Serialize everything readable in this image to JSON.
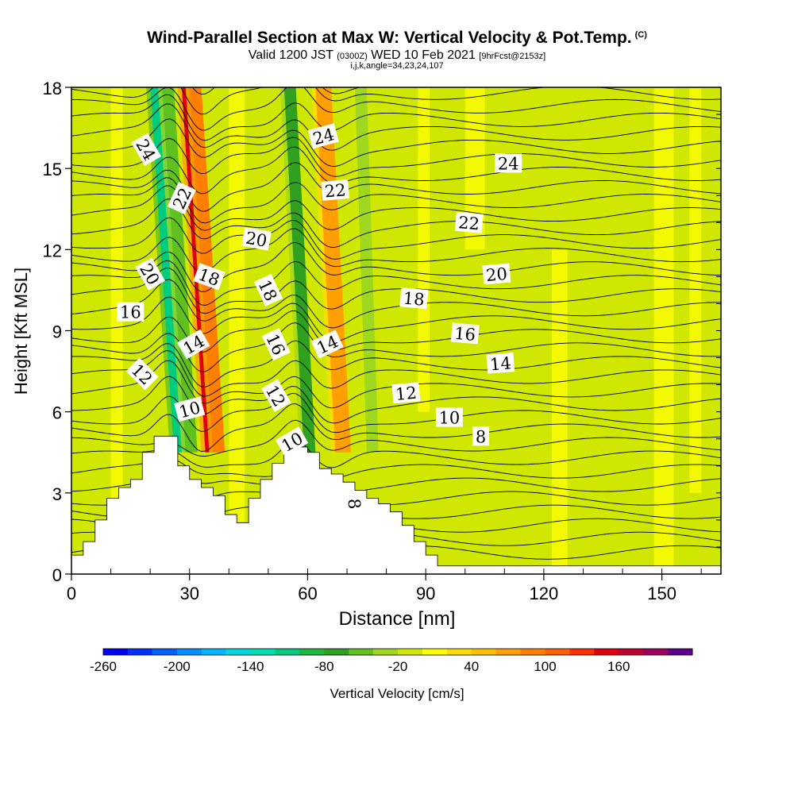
{
  "title": {
    "main": "Wind-Parallel Section at Max W: Vertical Velocity & Pot.Temp.",
    "badge": "(C)",
    "valid_prefix": "Valid 1200 JST",
    "valid_utc": "(0300Z)",
    "valid_suffix": "WED 10 Feb 2021",
    "forecast": "[9hrFcst@2153z]",
    "params": "i,j,k,angle=34,23,24,107"
  },
  "chart_data": {
    "type": "contour-cross-section",
    "xlabel": "Distance [nm]",
    "ylabel": "Height [Kft MSL]",
    "xlim": [
      0,
      165
    ],
    "ylim": [
      0,
      18
    ],
    "x_ticks": [
      0,
      30,
      60,
      90,
      120,
      150
    ],
    "y_ticks": [
      0,
      3,
      6,
      9,
      12,
      15,
      18
    ],
    "terrain": {
      "x": [
        0,
        3,
        6,
        9,
        12,
        15,
        18,
        21,
        24,
        27,
        30,
        33,
        36,
        39,
        42,
        45,
        48,
        51,
        54,
        57,
        60,
        63,
        66,
        69,
        72,
        75,
        78,
        81,
        84,
        87,
        90,
        93,
        96,
        165
      ],
      "height": [
        0.7,
        1.2,
        2.0,
        2.8,
        3.2,
        3.5,
        4.5,
        5.1,
        5.1,
        4.0,
        3.5,
        3.2,
        2.9,
        2.2,
        1.9,
        2.8,
        3.5,
        4.1,
        4.7,
        4.7,
        4.5,
        3.9,
        3.7,
        3.4,
        3.1,
        2.8,
        2.6,
        2.3,
        1.8,
        1.2,
        0.7,
        0.3,
        0.3,
        0.3
      ]
    },
    "vertical_velocity_bands": [
      {
        "x": 21,
        "w": 3,
        "value": -120
      },
      {
        "x": 24,
        "w": 3,
        "value": -60
      },
      {
        "x": 29,
        "w": 2.5,
        "value": 140
      },
      {
        "x": 31,
        "w": 3,
        "value": 90
      },
      {
        "x": 55,
        "w": 3,
        "value": -80
      },
      {
        "x": 63,
        "w": 4,
        "value": 70
      },
      {
        "x": 73,
        "w": 3,
        "value": -30
      }
    ],
    "theta_labels": [
      {
        "text": "24",
        "x": 19,
        "y": 15.7,
        "rot": 60
      },
      {
        "text": "22",
        "x": 28,
        "y": 13.9,
        "rot": -65
      },
      {
        "text": "20",
        "x": 20,
        "y": 11.1,
        "rot": 60
      },
      {
        "text": "16",
        "x": 15,
        "y": 9.7,
        "rot": 0
      },
      {
        "text": "12",
        "x": 18,
        "y": 7.4,
        "rot": 45
      },
      {
        "text": "18",
        "x": 35,
        "y": 11.0,
        "rot": 20
      },
      {
        "text": "14",
        "x": 31,
        "y": 8.5,
        "rot": -30
      },
      {
        "text": "10",
        "x": 30,
        "y": 6.1,
        "rot": -15
      },
      {
        "text": "20",
        "x": 47,
        "y": 12.4,
        "rot": 10
      },
      {
        "text": "18",
        "x": 50,
        "y": 10.5,
        "rot": 65
      },
      {
        "text": "16",
        "x": 52,
        "y": 8.5,
        "rot": 65
      },
      {
        "text": "12",
        "x": 52,
        "y": 6.6,
        "rot": 60
      },
      {
        "text": "10",
        "x": 56,
        "y": 4.9,
        "rot": -30
      },
      {
        "text": "24",
        "x": 64,
        "y": 16.2,
        "rot": -15
      },
      {
        "text": "22",
        "x": 67,
        "y": 14.2,
        "rot": -5
      },
      {
        "text": "14",
        "x": 65,
        "y": 8.5,
        "rot": -25
      },
      {
        "text": "18",
        "x": 87,
        "y": 10.2,
        "rot": 5
      },
      {
        "text": "12",
        "x": 85,
        "y": 6.7,
        "rot": -5
      },
      {
        "text": "8",
        "x": 72,
        "y": 2.6,
        "rot": 85
      },
      {
        "text": "24",
        "x": 111,
        "y": 15.2,
        "rot": 0
      },
      {
        "text": "22",
        "x": 101,
        "y": 13.0,
        "rot": 5
      },
      {
        "text": "20",
        "x": 108,
        "y": 11.1,
        "rot": -5
      },
      {
        "text": "16",
        "x": 100,
        "y": 8.9,
        "rot": 5
      },
      {
        "text": "14",
        "x": 109,
        "y": 7.8,
        "rot": -5
      },
      {
        "text": "10",
        "x": 96,
        "y": 5.8,
        "rot": 0
      },
      {
        "text": "8",
        "x": 104,
        "y": 5.1,
        "rot": 0
      }
    ],
    "colorbar": {
      "label": "Vertical Velocity [cm/s]",
      "min": -260,
      "max": 180,
      "step": 20,
      "ticks": [
        -260,
        -200,
        -140,
        -80,
        -20,
        40,
        100,
        160
      ],
      "colors": [
        "#0000ff",
        "#0030ff",
        "#0060ff",
        "#0090ff",
        "#00b8ff",
        "#00d8e0",
        "#00e0b0",
        "#00cc80",
        "#20b840",
        "#30a020",
        "#60c020",
        "#a0d820",
        "#d0e800",
        "#ffff00",
        "#ffdc00",
        "#ffc000",
        "#ffa000",
        "#ff8000",
        "#ff6000",
        "#ff3000",
        "#e00010",
        "#c00030",
        "#a00060",
        "#600090"
      ]
    },
    "legend_position": "bottom colorbar"
  }
}
